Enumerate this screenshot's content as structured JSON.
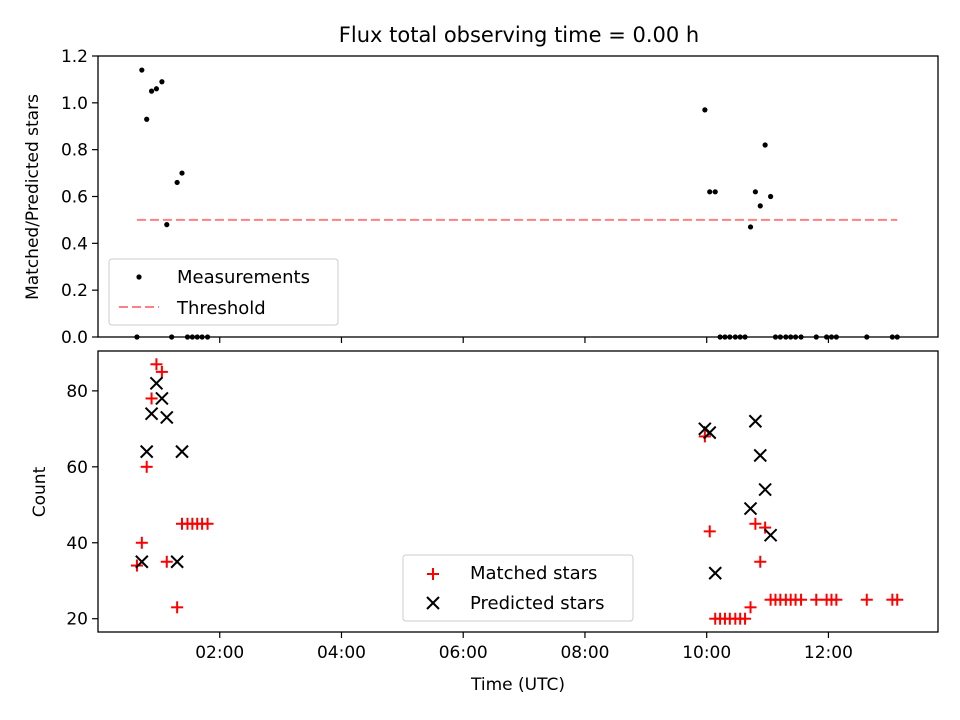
{
  "chart_data": [
    {
      "type": "scatter",
      "title": "Flux total observing time = 0.00 h",
      "xlabel": "",
      "ylabel": "Matched/Predicted stars",
      "xlim": [
        0.0,
        13.8
      ],
      "ylim": [
        0.0,
        1.2
      ],
      "yticks": [
        0.0,
        0.2,
        0.4,
        0.6,
        0.8,
        1.0,
        1.2
      ],
      "ytick_labels": [
        "0.0",
        "0.2",
        "0.4",
        "0.6",
        "0.8",
        "1.0",
        "1.2"
      ],
      "xticks": [
        2,
        4,
        6,
        8,
        10,
        12
      ],
      "legend_position": "lower-left",
      "series": [
        {
          "name": "Measurements",
          "marker": "dot",
          "color": "#000000",
          "points": [
            [
              0.64,
              0.0
            ],
            [
              0.72,
              1.14
            ],
            [
              0.8,
              0.93
            ],
            [
              0.88,
              1.05
            ],
            [
              0.96,
              1.06
            ],
            [
              1.05,
              1.09
            ],
            [
              1.13,
              0.48
            ],
            [
              1.21,
              0.0
            ],
            [
              1.3,
              0.66
            ],
            [
              1.38,
              0.7
            ],
            [
              1.47,
              0.0
            ],
            [
              1.55,
              0.0
            ],
            [
              1.63,
              0.0
            ],
            [
              1.71,
              0.0
            ],
            [
              1.8,
              0.0
            ],
            [
              9.97,
              0.97
            ],
            [
              10.05,
              0.62
            ],
            [
              10.14,
              0.62
            ],
            [
              10.22,
              0.0
            ],
            [
              10.3,
              0.0
            ],
            [
              10.38,
              0.0
            ],
            [
              10.47,
              0.0
            ],
            [
              10.55,
              0.0
            ],
            [
              10.63,
              0.0
            ],
            [
              10.72,
              0.47
            ],
            [
              10.8,
              0.62
            ],
            [
              10.88,
              0.56
            ],
            [
              10.96,
              0.82
            ],
            [
              11.05,
              0.6
            ],
            [
              11.13,
              0.0
            ],
            [
              11.21,
              0.0
            ],
            [
              11.3,
              0.0
            ],
            [
              11.38,
              0.0
            ],
            [
              11.46,
              0.0
            ],
            [
              11.55,
              0.0
            ],
            [
              11.8,
              0.0
            ],
            [
              11.97,
              0.0
            ],
            [
              12.05,
              0.0
            ],
            [
              12.13,
              0.0
            ],
            [
              12.63,
              0.0
            ],
            [
              13.05,
              0.0
            ],
            [
              13.13,
              0.0
            ]
          ]
        },
        {
          "name": "Threshold",
          "style": "dashed",
          "color": "#ff8080",
          "points": [
            [
              0.64,
              0.5
            ],
            [
              13.13,
              0.5
            ]
          ]
        }
      ]
    },
    {
      "type": "scatter",
      "title": "",
      "xlabel": "Time (UTC)",
      "ylabel": "Count",
      "xlim": [
        0.0,
        13.8
      ],
      "ylim": [
        16.5,
        90.5
      ],
      "yticks": [
        20,
        40,
        60,
        80
      ],
      "ytick_labels": [
        "20",
        "40",
        "60",
        "80"
      ],
      "xticks": [
        2,
        4,
        6,
        8,
        10,
        12
      ],
      "xtick_labels": [
        "02:00",
        "04:00",
        "06:00",
        "08:00",
        "10:00",
        "12:00"
      ],
      "legend_position": "lower-center",
      "series": [
        {
          "name": "Matched stars",
          "marker": "plus",
          "color": "#ff0000",
          "points": [
            [
              0.64,
              34
            ],
            [
              0.72,
              40
            ],
            [
              0.8,
              60
            ],
            [
              0.88,
              78
            ],
            [
              0.96,
              87
            ],
            [
              1.05,
              85
            ],
            [
              1.13,
              35
            ],
            [
              1.3,
              23
            ],
            [
              1.38,
              45
            ],
            [
              1.47,
              45
            ],
            [
              1.55,
              45
            ],
            [
              1.63,
              45
            ],
            [
              1.71,
              45
            ],
            [
              1.8,
              45
            ],
            [
              9.97,
              68
            ],
            [
              10.05,
              43
            ],
            [
              10.14,
              20
            ],
            [
              10.22,
              20
            ],
            [
              10.3,
              20
            ],
            [
              10.38,
              20
            ],
            [
              10.47,
              20
            ],
            [
              10.55,
              20
            ],
            [
              10.63,
              20
            ],
            [
              10.72,
              23
            ],
            [
              10.8,
              45
            ],
            [
              10.88,
              35
            ],
            [
              10.96,
              44
            ],
            [
              11.05,
              25
            ],
            [
              11.13,
              25
            ],
            [
              11.21,
              25
            ],
            [
              11.3,
              25
            ],
            [
              11.38,
              25
            ],
            [
              11.46,
              25
            ],
            [
              11.55,
              25
            ],
            [
              11.8,
              25
            ],
            [
              11.97,
              25
            ],
            [
              12.05,
              25
            ],
            [
              12.13,
              25
            ],
            [
              12.63,
              25
            ],
            [
              13.05,
              25
            ],
            [
              13.13,
              25
            ]
          ]
        },
        {
          "name": "Predicted stars",
          "marker": "x",
          "color": "#000000",
          "points": [
            [
              0.72,
              35
            ],
            [
              0.8,
              64
            ],
            [
              0.88,
              74
            ],
            [
              0.96,
              82
            ],
            [
              1.05,
              78
            ],
            [
              1.13,
              73
            ],
            [
              1.3,
              35
            ],
            [
              1.38,
              64
            ],
            [
              9.97,
              70
            ],
            [
              10.05,
              69
            ],
            [
              10.14,
              32
            ],
            [
              10.72,
              49
            ],
            [
              10.8,
              72
            ],
            [
              10.88,
              63
            ],
            [
              10.96,
              54
            ],
            [
              11.05,
              42
            ]
          ]
        }
      ]
    }
  ]
}
